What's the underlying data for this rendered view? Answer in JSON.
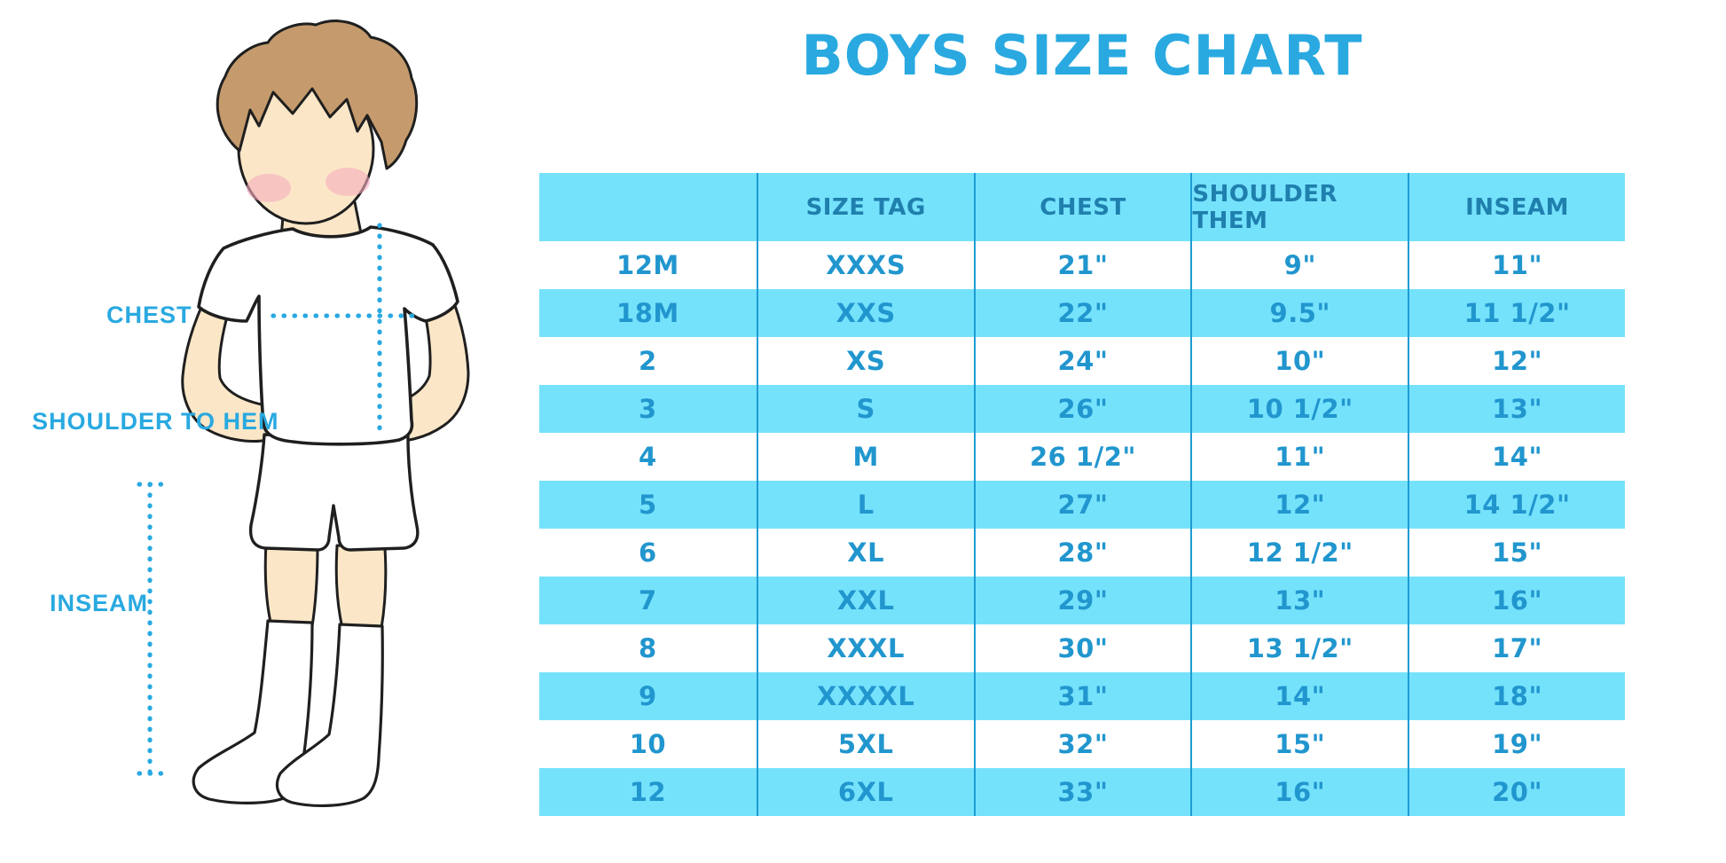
{
  "title": "BOYS SIZE CHART",
  "colors": {
    "accent": "#29a9e0",
    "band": "#75e2fc",
    "header_text": "#1f7fad",
    "cell_text": "#2196ce",
    "grid_line": "#1c9cd4",
    "skin": "#fbe7c8",
    "hair": "#c59b6d",
    "blush": "#f7aebe",
    "outline": "#1f1f1f"
  },
  "figure": {
    "labels": {
      "chest": "CHEST",
      "shoulder_to_hem": "SHOULDER TO HEM",
      "inseam": "INSEAM"
    }
  },
  "chart_data": {
    "type": "table",
    "title": "BOYS SIZE CHART",
    "columns": [
      "",
      "SIZE TAG",
      "CHEST",
      "SHOULDER THEM",
      "INSEAM"
    ],
    "rows": [
      [
        "12M",
        "XXXS",
        "21\"",
        "9\"",
        "11\""
      ],
      [
        "18M",
        "XXS",
        "22\"",
        "9.5\"",
        "11 1/2\""
      ],
      [
        "2",
        "XS",
        "24\"",
        "10\"",
        "12\""
      ],
      [
        "3",
        "S",
        "26\"",
        "10 1/2\"",
        "13\""
      ],
      [
        "4",
        "M",
        "26 1/2\"",
        "11\"",
        "14\""
      ],
      [
        "5",
        "L",
        "27\"",
        "12\"",
        "14 1/2\""
      ],
      [
        "6",
        "XL",
        "28\"",
        "12 1/2\"",
        "15\""
      ],
      [
        "7",
        "XXL",
        "29\"",
        "13\"",
        "16\""
      ],
      [
        "8",
        "XXXL",
        "30\"",
        "13 1/2\"",
        "17\""
      ],
      [
        "9",
        "XXXXL",
        "31\"",
        "14\"",
        "18\""
      ],
      [
        "10",
        "5XL",
        "32\"",
        "15\"",
        "19\""
      ],
      [
        "12",
        "6XL",
        "33\"",
        "16\"",
        "20\""
      ]
    ],
    "layout": {
      "row_striping": "white / light-cyan alternating",
      "grid": "vertical column separators only",
      "legend": "none"
    }
  }
}
